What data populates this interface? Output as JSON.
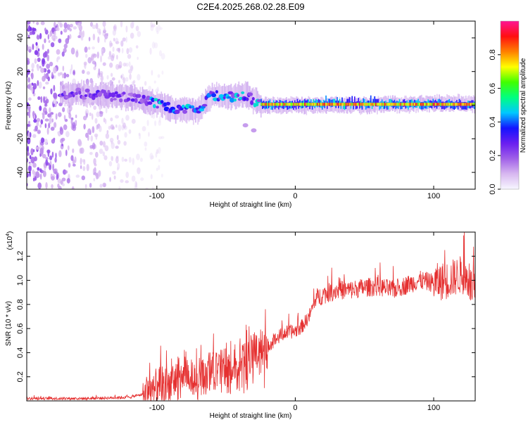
{
  "title": "C2E4.2025.268.02.28.E09",
  "chart_data": [
    {
      "type": "heatmap",
      "name": "spectrogram",
      "xlabel": "Height of straight line (km)",
      "ylabel": "Frequency (Hz)",
      "xlim": [
        -194,
        130
      ],
      "ylim": [
        -50,
        50
      ],
      "xticks": [
        -100,
        0,
        100
      ],
      "yticks": [
        -40,
        -20,
        0,
        20,
        40
      ],
      "colorbar": {
        "label": "Normalized spectral amplitude",
        "range": [
          0,
          1
        ],
        "ticks": [
          0.0,
          0.2,
          0.4,
          0.6,
          0.8
        ],
        "stops": [
          "#f7f7ff",
          "#d8b8f0",
          "#a060e8",
          "#6a1ef0",
          "#1414ff",
          "#00c8ff",
          "#00ff80",
          "#40ff00",
          "#ffff00",
          "#ff8000",
          "#ff1010",
          "#ff1493"
        ]
      },
      "features": [
        {
          "name": "noise region",
          "x_range": [
            -194,
            -95
          ],
          "freq_range": [
            -50,
            50
          ],
          "amplitude": 0.05
        },
        {
          "name": "signal trace",
          "points": [
            [
              -165,
              7
            ],
            [
              -140,
              6
            ],
            [
              -120,
              5
            ],
            [
              -100,
              1
            ],
            [
              -85,
              -3
            ],
            [
              -70,
              -3
            ],
            [
              -60,
              6
            ],
            [
              -45,
              5
            ],
            [
              -35,
              6
            ],
            [
              -25,
              0
            ],
            [
              0,
              0
            ],
            [
              50,
              0
            ],
            [
              100,
              1
            ],
            [
              130,
              1
            ]
          ]
        },
        {
          "name": "strong carrier",
          "x_range": [
            -25,
            130
          ],
          "freq": 0.5,
          "amplitude": 0.9
        },
        {
          "name": "spur",
          "points": [
            [
              -36,
              -12
            ],
            [
              -30,
              -15
            ]
          ]
        }
      ]
    },
    {
      "type": "line",
      "name": "snr",
      "xlabel": "Height of straight line (km)",
      "ylabel": "SNR (10 * v/v)",
      "y_multiplier_label": "(x10",
      "y_multiplier_exp": "4",
      "y_multiplier_close": ")",
      "xlim": [
        -194,
        130
      ],
      "ylim": [
        0,
        1.4
      ],
      "xticks": [
        -100,
        0,
        100
      ],
      "yticks": [
        0.2,
        0.4,
        0.6,
        0.8,
        1.0,
        1.2
      ],
      "color": "#e53030",
      "series": [
        {
          "name": "SNR envelope",
          "x": [
            -194,
            -150,
            -120,
            -100,
            -90,
            -80,
            -70,
            -60,
            -50,
            -40,
            -30,
            -25,
            -20,
            -15,
            -10,
            -5,
            0,
            5,
            10,
            15,
            20,
            30,
            40,
            50,
            60,
            70,
            80,
            90,
            100,
            110,
            120,
            125,
            130
          ],
          "values": [
            0.02,
            0.02,
            0.03,
            0.08,
            0.15,
            0.22,
            0.2,
            0.25,
            0.3,
            0.34,
            0.4,
            0.38,
            0.46,
            0.5,
            0.55,
            0.57,
            0.58,
            0.62,
            0.7,
            0.85,
            0.88,
            0.92,
            0.92,
            0.94,
            0.95,
            0.92,
            0.96,
            1.0,
            0.98,
            1.0,
            1.05,
            1.0,
            0.88
          ]
        }
      ]
    }
  ]
}
